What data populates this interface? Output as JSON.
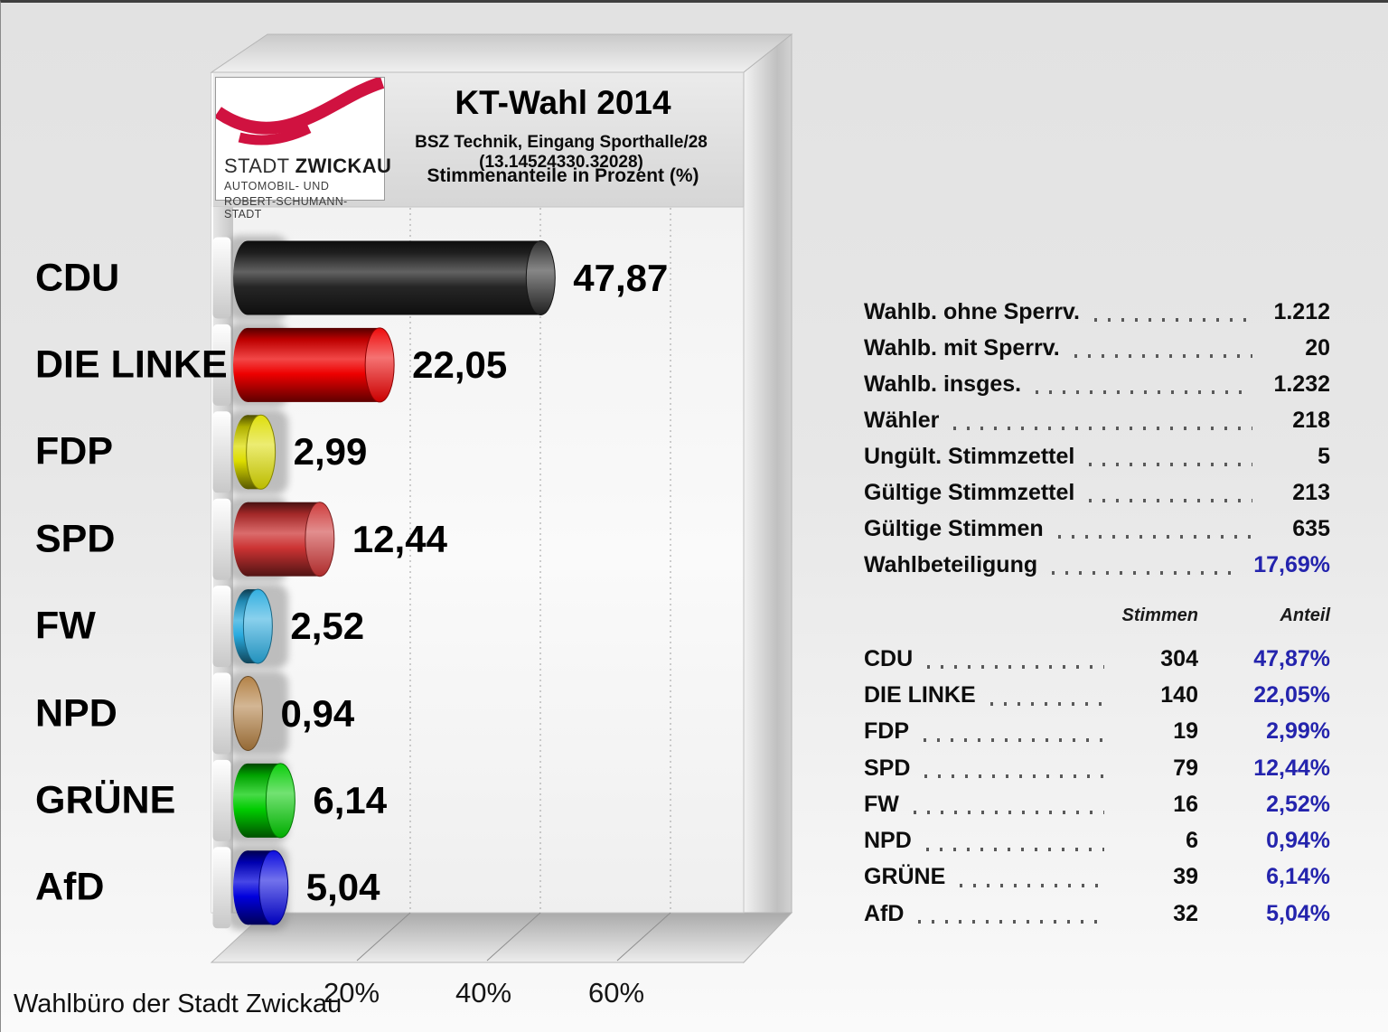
{
  "header": {
    "title": "KT-Wahl 2014",
    "subtitle": "BSZ Technik, Eingang Sporthalle/28 (13.14524330.32028)",
    "subtitle2": "Stimmenanteile in Prozent (%)",
    "logo": {
      "line1_regular": "STADT ",
      "line1_bold": "ZWICKAU",
      "line2": "AUTOMOBIL- UND",
      "line3": "ROBERT-SCHUMANN-STADT"
    }
  },
  "footer": "Wahlbüro der Stadt Zwickau",
  "chart_data": {
    "type": "bar",
    "orientation": "horizontal",
    "title": "KT-Wahl 2014",
    "subtitle": "BSZ Technik, Eingang Sporthalle/28 (13.14524330.32028)",
    "value_axis_label": "Stimmenanteile in Prozent (%)",
    "categories": [
      "CDU",
      "DIE LINKE",
      "FDP",
      "SPD",
      "FW",
      "NPD",
      "GRÜNE",
      "AfD"
    ],
    "values": [
      47.87,
      22.05,
      2.99,
      12.44,
      2.52,
      0.94,
      6.14,
      5.04
    ],
    "value_labels": [
      "47,87",
      "22,05",
      "2,99",
      "12,44",
      "2,52",
      "0,94",
      "6,14",
      "5,04"
    ],
    "bar_colors": [
      "#262626",
      "#ee0000",
      "#dddd00",
      "#cc3333",
      "#29abdf",
      "#b07c3e",
      "#00cc00",
      "#0000dd"
    ],
    "x_ticks": [
      "20%",
      "40%",
      "60%"
    ],
    "x_tick_values": [
      20,
      40,
      60
    ],
    "xlim": [
      0,
      80
    ],
    "grid": "dashed-vertical-3d"
  },
  "summary": {
    "rows": [
      {
        "label": "Wahlb. ohne Sperrv.",
        "value": "1.212",
        "highlight": false
      },
      {
        "label": "Wahlb. mit Sperrv.",
        "value": "20",
        "highlight": false
      },
      {
        "label": "Wahlb. insges.",
        "value": "1.232",
        "highlight": false
      },
      {
        "label": "Wähler",
        "value": "218",
        "highlight": false
      },
      {
        "label": "Ungült. Stimmzettel",
        "value": "5",
        "highlight": false
      },
      {
        "label": "Gültige Stimmzettel",
        "value": "213",
        "highlight": false
      },
      {
        "label": "Gültige Stimmen",
        "value": "635",
        "highlight": false
      },
      {
        "label": "Wahlbeteiligung",
        "value": "17,69%",
        "highlight": true
      }
    ]
  },
  "results_table": {
    "headers": {
      "votes": "Stimmen",
      "share": "Anteil"
    },
    "rows": [
      {
        "party": "CDU",
        "votes": "304",
        "share": "47,87%"
      },
      {
        "party": "DIE LINKE",
        "votes": "140",
        "share": "22,05%"
      },
      {
        "party": "FDP",
        "votes": "19",
        "share": "2,99%"
      },
      {
        "party": "SPD",
        "votes": "79",
        "share": "12,44%"
      },
      {
        "party": "FW",
        "votes": "16",
        "share": "2,52%"
      },
      {
        "party": "NPD",
        "votes": "6",
        "share": "0,94%"
      },
      {
        "party": "GRÜNE",
        "votes": "39",
        "share": "6,14%"
      },
      {
        "party": "AfD",
        "votes": "32",
        "share": "5,04%"
      }
    ]
  },
  "colors": {
    "accent_blue": "#2424ad",
    "logo_red": "#d01240",
    "background_top": "#e2e2e2",
    "background_bottom": "#fafafa"
  }
}
